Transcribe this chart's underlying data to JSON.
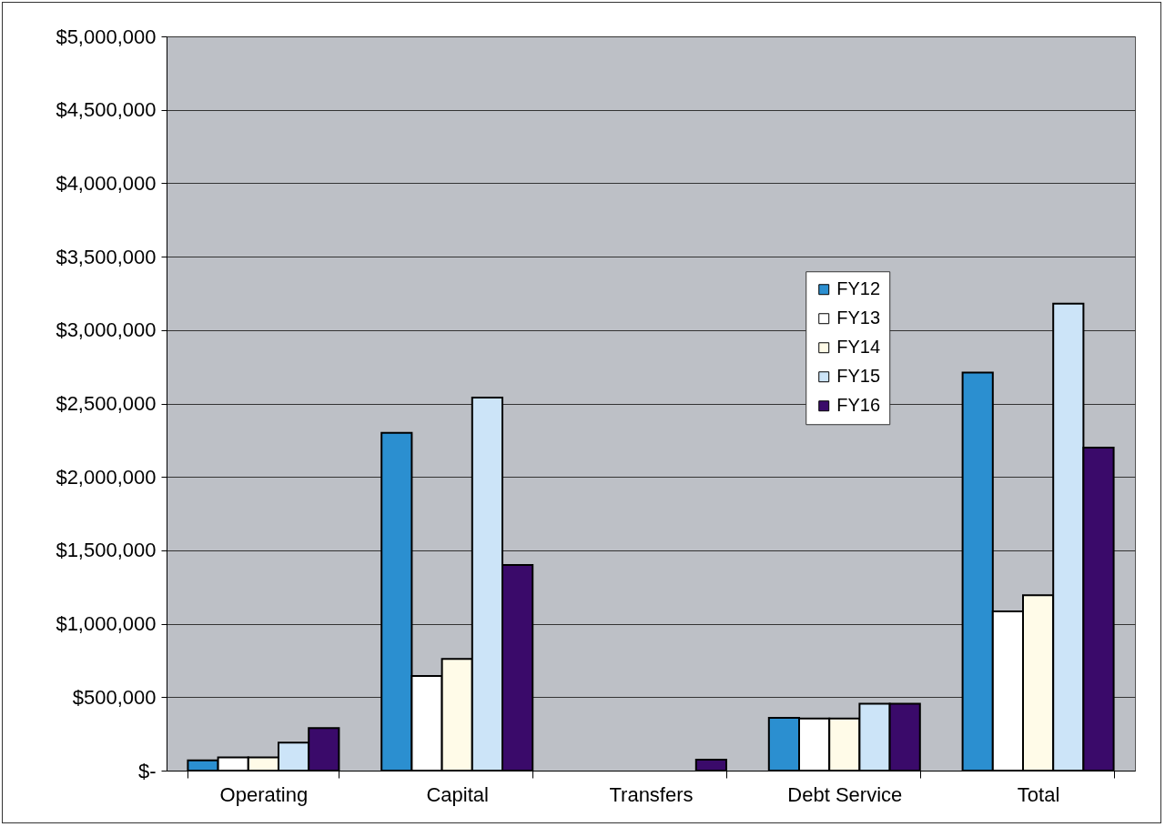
{
  "chart_data": {
    "type": "bar",
    "categories": [
      "Operating",
      "Capital",
      "Transfers",
      "Debt Service",
      "Total"
    ],
    "series": [
      {
        "name": "FY12",
        "color": "#2b8fd0",
        "values": [
          70000,
          2300000,
          0,
          360000,
          2710000
        ]
      },
      {
        "name": "FY13",
        "color": "#ffffff",
        "values": [
          90000,
          645000,
          0,
          355000,
          1085000
        ]
      },
      {
        "name": "FY14",
        "color": "#fffbe8",
        "values": [
          90000,
          760000,
          0,
          355000,
          1195000
        ]
      },
      {
        "name": "FY15",
        "color": "#cce4f8",
        "values": [
          190000,
          2540000,
          0,
          455000,
          3180000
        ]
      },
      {
        "name": "FY16",
        "color": "#3a0a6a",
        "values": [
          290000,
          1400000,
          75000,
          455000,
          2200000
        ]
      }
    ],
    "ylim": [
      0,
      5000000
    ],
    "yticks": [
      {
        "value": 0,
        "label": "$-"
      },
      {
        "value": 500000,
        "label": "$500,000"
      },
      {
        "value": 1000000,
        "label": "$1,000,000"
      },
      {
        "value": 1500000,
        "label": "$1,500,000"
      },
      {
        "value": 2000000,
        "label": "$2,000,000"
      },
      {
        "value": 2500000,
        "label": "$2,500,000"
      },
      {
        "value": 3000000,
        "label": "$3,000,000"
      },
      {
        "value": 3500000,
        "label": "$3,500,000"
      },
      {
        "value": 4000000,
        "label": "$4,000,000"
      },
      {
        "value": 4500000,
        "label": "$4,500,000"
      },
      {
        "value": 5000000,
        "label": "$5,000,000"
      }
    ],
    "grid": "y",
    "legend": "right"
  }
}
